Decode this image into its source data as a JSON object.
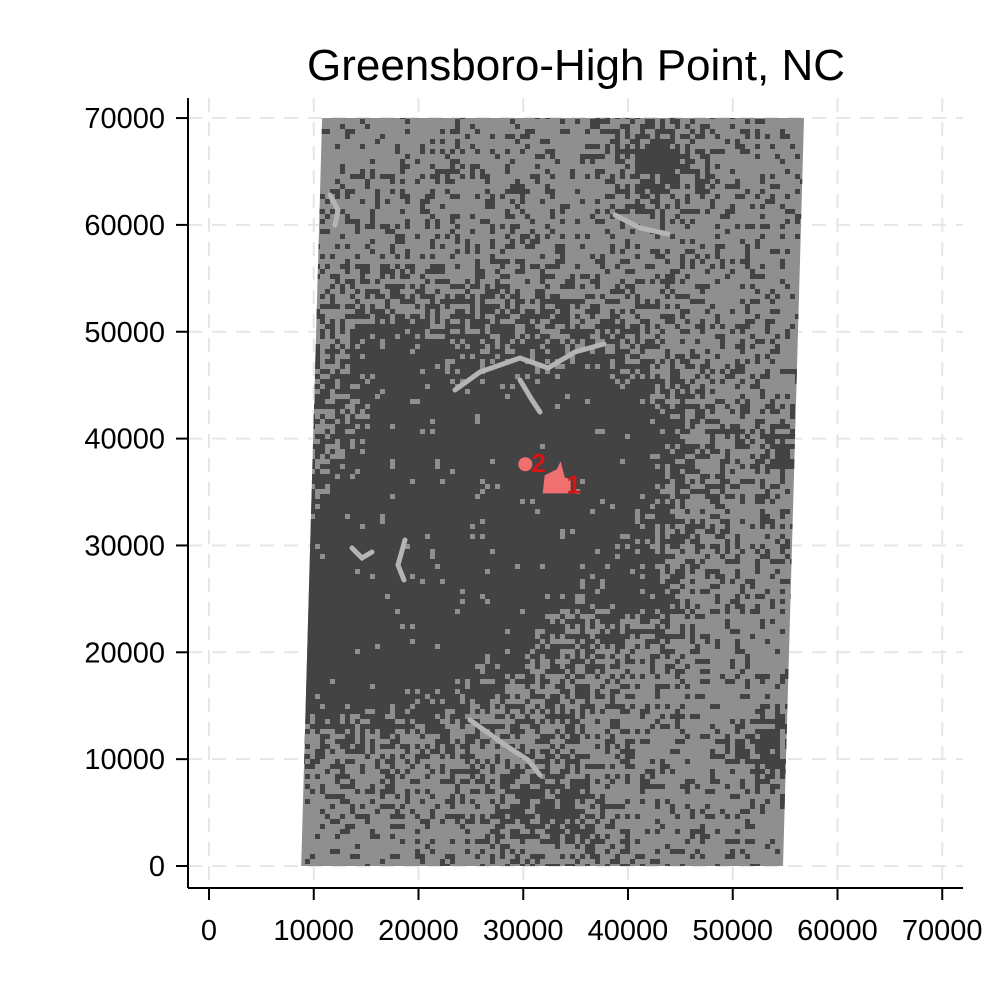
{
  "chart_data": {
    "type": "map",
    "title": "Greensboro-High Point, NC",
    "xlabel": "",
    "ylabel": "",
    "xlim": [
      0,
      72000
    ],
    "ylim": [
      -2000,
      72000
    ],
    "x_ticks": [
      0,
      10000,
      20000,
      30000,
      40000,
      50000,
      60000,
      70000
    ],
    "y_ticks": [
      0,
      10000,
      20000,
      30000,
      40000,
      50000,
      60000,
      70000
    ],
    "x_tick_labels": [
      "0",
      "10000",
      "20000",
      "30000",
      "40000",
      "50000",
      "60000",
      "70000"
    ],
    "y_tick_labels": [
      "0",
      "10000",
      "20000",
      "30000",
      "40000",
      "50000",
      "60000",
      "70000"
    ],
    "grid": true,
    "region_corners": {
      "bottom_left": [
        8800,
        0
      ],
      "bottom_right": [
        54800,
        0
      ],
      "top_right": [
        56800,
        70000
      ],
      "top_left": [
        10800,
        70000
      ]
    },
    "colors": {
      "background_region": "#8f8f8f",
      "urban": "#434343",
      "water_light": "#b4b4b4",
      "highlight": "#f07070",
      "marker_label": "#d81414"
    },
    "markers": [
      {
        "label": "1",
        "x": 33000,
        "y": 36000
      },
      {
        "label": "2",
        "x": 30200,
        "y": 37600
      }
    ]
  }
}
